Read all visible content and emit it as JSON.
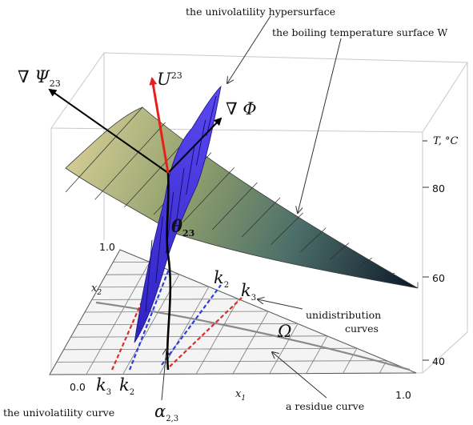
{
  "labels": {
    "univolatility_hypersurface": "the univolatility hypersurface",
    "boiling_surface": "the boiling temperature surface W",
    "grad_psi": "∇ Ψ",
    "grad_psi_sub": "23",
    "u": "U",
    "u_sup": "23",
    "grad_phi": "∇ Φ",
    "theta": "θ",
    "theta_sub": "23",
    "t_axis": "T, °C",
    "x2": "x",
    "x2_sub": "2",
    "x1": "x",
    "x1_sub": "1",
    "k2_top": "k",
    "k2_top_sub": "2",
    "k3_top": "k",
    "k3_top_sub": "3",
    "unidistribution": "unidistribution",
    "curves": "curves",
    "omega": "Ω",
    "univolatility_curve": "the univolatility curve",
    "alpha": "α",
    "alpha_sub": "2,3",
    "residue_curve": "a residue curve",
    "k3_bottom": "k",
    "k3_bottom_sub": "3",
    "k2_bottom": "k",
    "k2_bottom_sub": "2"
  },
  "ticks": {
    "t80": "80",
    "t60": "60",
    "t40": "40",
    "x2_max": "1.0",
    "origin": "0.0",
    "x1_max": "1.0"
  },
  "colors": {
    "hypersurface": "#3b2fd8",
    "arrow_u": "#e8201c",
    "red_dashed": "#dd2a2a",
    "blue_dashed": "#2b3fdd",
    "surface_light": "#d8c893",
    "surface_dark": "#0d1a2c"
  }
}
